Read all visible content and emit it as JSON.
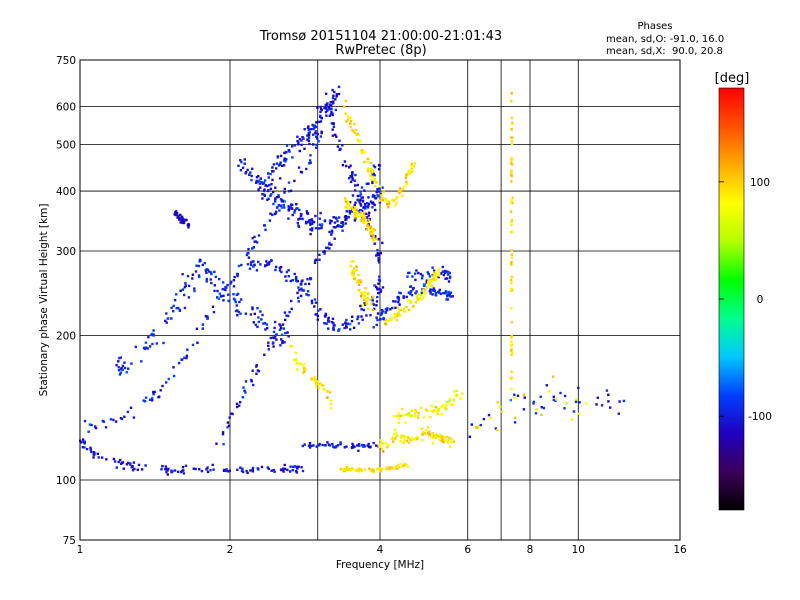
{
  "chart_data": {
    "type": "scatter",
    "title": "Tromsø 20151104 21:00:00-21:01:43",
    "subtitle": "RwPretec (8p)",
    "xlabel": "Frequency [MHz]",
    "ylabel": "Stationary phase Virtual Height [km]",
    "x_scale": "log",
    "y_scale": "log",
    "xlim": [
      1,
      16
    ],
    "ylim": [
      75,
      750
    ],
    "x_ticks": [
      1,
      2,
      4,
      6,
      8,
      10,
      16
    ],
    "x_tick_labels": [
      "1",
      "2",
      "4",
      "6",
      "8",
      "10",
      "16"
    ],
    "x_grid": [
      2,
      4,
      6,
      8,
      10
    ],
    "x_minor_lines": [
      3,
      7
    ],
    "y_ticks": [
      75,
      100,
      200,
      300,
      400,
      500,
      600,
      750
    ],
    "y_tick_labels": [
      "75",
      "100",
      "200",
      "300",
      "400",
      "500",
      "600",
      "750"
    ],
    "grid": true,
    "stats": {
      "heading": "Phases",
      "lines": [
        "mean, sd,O: -91.0, 16.0",
        "mean, sd,X:  90.0, 20.8"
      ],
      "mean_O": -91.0,
      "sd_O": 16.0,
      "mean_X": 90.0,
      "sd_X": 20.8
    },
    "colorbar": {
      "label": "[deg]",
      "range": [
        -180,
        180
      ],
      "ticks": [
        100,
        0,
        -100
      ],
      "tick_labels": [
        "100",
        "0",
        "-100"
      ],
      "colormap": [
        "#000000",
        "#3d005a",
        "#1f00c0",
        "#0040ff",
        "#00c8ff",
        "#00ff8c",
        "#00ff00",
        "#b4ff00",
        "#ffff00",
        "#ffaa00",
        "#ff5000",
        "#ff0000"
      ]
    },
    "traces": [
      {
        "kind": "o",
        "phase_mean": -105,
        "phase_sd": 12,
        "spread": 0.012,
        "density": 120,
        "points": [
          [
            1.0,
            120
          ],
          [
            1.1,
            111
          ],
          [
            1.3,
            106
          ],
          [
            1.6,
            105
          ],
          [
            2.0,
            105
          ],
          [
            2.5,
            105
          ],
          [
            2.8,
            106
          ]
        ]
      },
      {
        "kind": "o",
        "phase_mean": -100,
        "phase_sd": 16,
        "spread": 0.02,
        "density": 120,
        "points": [
          [
            1.0,
            127
          ],
          [
            1.2,
            133
          ],
          [
            1.4,
            150
          ],
          [
            1.6,
            175
          ],
          [
            1.8,
            215
          ],
          [
            2.0,
            258
          ],
          [
            2.2,
            305
          ],
          [
            2.4,
            350
          ],
          [
            2.6,
            400
          ],
          [
            2.9,
            470
          ],
          [
            3.1,
            560
          ]
        ]
      },
      {
        "kind": "o",
        "phase_mean": -105,
        "phase_sd": 16,
        "spread": 0.02,
        "density": 110,
        "points": [
          [
            1.9,
            120
          ],
          [
            2.1,
            145
          ],
          [
            2.3,
            175
          ],
          [
            2.55,
            210
          ],
          [
            2.8,
            250
          ],
          [
            3.1,
            300
          ],
          [
            3.4,
            350
          ],
          [
            3.7,
            400
          ],
          [
            4.0,
            460
          ]
        ]
      },
      {
        "kind": "o",
        "phase_mean": -100,
        "phase_sd": 16,
        "spread": 0.035,
        "density": 180,
        "points": [
          [
            2.1,
            460
          ],
          [
            2.3,
            420
          ],
          [
            2.5,
            380
          ],
          [
            2.7,
            360
          ],
          [
            2.9,
            345
          ],
          [
            3.2,
            340
          ],
          [
            3.5,
            355
          ],
          [
            3.8,
            380
          ],
          [
            4.0,
            400
          ]
        ]
      },
      {
        "kind": "o",
        "phase_mean": -100,
        "phase_sd": 16,
        "spread": 0.03,
        "density": 130,
        "points": [
          [
            2.15,
            280
          ],
          [
            2.4,
            285
          ],
          [
            2.7,
            260
          ],
          [
            2.95,
            230
          ],
          [
            3.2,
            210
          ],
          [
            3.5,
            212
          ],
          [
            3.9,
            235
          ],
          [
            4.0,
            255
          ]
        ]
      },
      {
        "kind": "o",
        "phase_mean": -105,
        "phase_sd": 14,
        "spread": 0.03,
        "density": 110,
        "points": [
          [
            2.3,
            390
          ],
          [
            2.5,
            450
          ],
          [
            2.7,
            500
          ],
          [
            2.9,
            530
          ],
          [
            3.1,
            590
          ],
          [
            3.3,
            640
          ]
        ]
      },
      {
        "kind": "o",
        "phase_mean": -105,
        "phase_sd": 14,
        "spread": 0.025,
        "density": 90,
        "points": [
          [
            3.1,
            640
          ],
          [
            3.2,
            560
          ],
          [
            3.35,
            480
          ],
          [
            3.55,
            420
          ],
          [
            3.75,
            360
          ],
          [
            3.9,
            320
          ],
          [
            4.0,
            290
          ]
        ]
      },
      {
        "kind": "o",
        "phase_mean": -95,
        "phase_sd": 14,
        "spread": 0.04,
        "density": 150,
        "points": [
          [
            1.2,
            170
          ],
          [
            1.3,
            180
          ],
          [
            1.45,
            205
          ],
          [
            1.6,
            245
          ],
          [
            1.75,
            280
          ],
          [
            1.85,
            270
          ],
          [
            2.0,
            240
          ],
          [
            2.2,
            220
          ],
          [
            2.4,
            205
          ],
          [
            2.6,
            195
          ]
        ]
      },
      {
        "kind": "o",
        "phase_mean": -110,
        "phase_sd": 10,
        "spread": 0.012,
        "density": 40,
        "points": [
          [
            1.55,
            360
          ],
          [
            1.6,
            350
          ],
          [
            1.65,
            340
          ]
        ]
      },
      {
        "kind": "o",
        "phase_mean": -100,
        "phase_sd": 12,
        "spread": 0.01,
        "density": 50,
        "points": [
          [
            2.8,
            118
          ],
          [
            3.2,
            118
          ],
          [
            3.6,
            117
          ],
          [
            4.0,
            118
          ]
        ]
      },
      {
        "kind": "o",
        "phase_mean": -95,
        "phase_sd": 14,
        "spread": 0.018,
        "density": 90,
        "points": [
          [
            3.9,
            210
          ],
          [
            4.2,
            230
          ],
          [
            4.5,
            245
          ],
          [
            4.9,
            250
          ],
          [
            5.3,
            245
          ],
          [
            5.6,
            240
          ]
        ]
      },
      {
        "kind": "o",
        "phase_mean": -100,
        "phase_sd": 14,
        "spread": 0.02,
        "density": 40,
        "points": [
          [
            4.5,
            270
          ],
          [
            5.0,
            265
          ],
          [
            5.4,
            268
          ],
          [
            5.6,
            260
          ]
        ]
      },
      {
        "kind": "x",
        "phase_mean": 95,
        "phase_sd": 16,
        "spread": 0.02,
        "density": 100,
        "points": [
          [
            3.4,
            600
          ],
          [
            3.6,
            520
          ],
          [
            3.8,
            450
          ],
          [
            4.0,
            400
          ],
          [
            4.2,
            370
          ],
          [
            4.5,
            420
          ],
          [
            4.7,
            460
          ]
        ]
      },
      {
        "kind": "x",
        "phase_mean": 95,
        "phase_sd": 16,
        "spread": 0.02,
        "density": 70,
        "points": [
          [
            3.4,
            380
          ],
          [
            3.6,
            360
          ],
          [
            3.8,
            340
          ],
          [
            3.9,
            320
          ]
        ]
      },
      {
        "kind": "x",
        "phase_mean": 85,
        "phase_sd": 18,
        "spread": 0.018,
        "density": 80,
        "points": [
          [
            4.1,
            210
          ],
          [
            4.4,
            225
          ],
          [
            4.8,
            240
          ],
          [
            5.1,
            260
          ],
          [
            5.3,
            275
          ]
        ]
      },
      {
        "kind": "x",
        "phase_mean": 95,
        "phase_sd": 14,
        "spread": 0.008,
        "density": 60,
        "points": [
          [
            3.3,
            105
          ],
          [
            3.6,
            105
          ],
          [
            3.9,
            105
          ],
          [
            4.2,
            106
          ],
          [
            4.6,
            108
          ]
        ]
      },
      {
        "kind": "x",
        "phase_mean": 90,
        "phase_sd": 18,
        "spread": 0.02,
        "density": 90,
        "points": [
          [
            4.0,
            118
          ],
          [
            4.3,
            124
          ],
          [
            4.6,
            122
          ],
          [
            5.0,
            125
          ],
          [
            5.3,
            122
          ],
          [
            5.6,
            119
          ]
        ]
      },
      {
        "kind": "x",
        "phase_mean": 80,
        "phase_sd": 20,
        "spread": 0.025,
        "density": 60,
        "points": [
          [
            4.3,
            135
          ],
          [
            4.6,
            137
          ],
          [
            5.0,
            140
          ],
          [
            5.4,
            142
          ],
          [
            5.8,
            150
          ]
        ]
      },
      {
        "kind": "x",
        "phase_mean": 95,
        "phase_sd": 14,
        "spread": 0.005,
        "density": 60,
        "points": [
          [
            7.35,
            150
          ],
          [
            7.35,
            250
          ],
          [
            7.35,
            400
          ],
          [
            7.35,
            650
          ]
        ]
      },
      {
        "kind": "x",
        "phase_mean": 90,
        "phase_sd": 20,
        "spread": 0.02,
        "density": 40,
        "points": [
          [
            2.6,
            190
          ],
          [
            2.8,
            170
          ],
          [
            3.0,
            160
          ],
          [
            3.2,
            145
          ]
        ]
      },
      {
        "kind": "x",
        "phase_mean": 95,
        "phase_sd": 14,
        "spread": 0.03,
        "density": 50,
        "points": [
          [
            3.5,
            280
          ],
          [
            3.7,
            250
          ],
          [
            3.9,
            220
          ]
        ]
      },
      {
        "kind": "mix",
        "phase_mean": -20,
        "phase_sd": 90,
        "spread": 0.06,
        "density": 60,
        "points": [
          [
            6.0,
            130
          ],
          [
            7.0,
            140
          ],
          [
            8.0,
            145
          ],
          [
            9.0,
            150
          ],
          [
            10.0,
            145
          ],
          [
            12.0,
            145
          ]
        ]
      }
    ]
  }
}
